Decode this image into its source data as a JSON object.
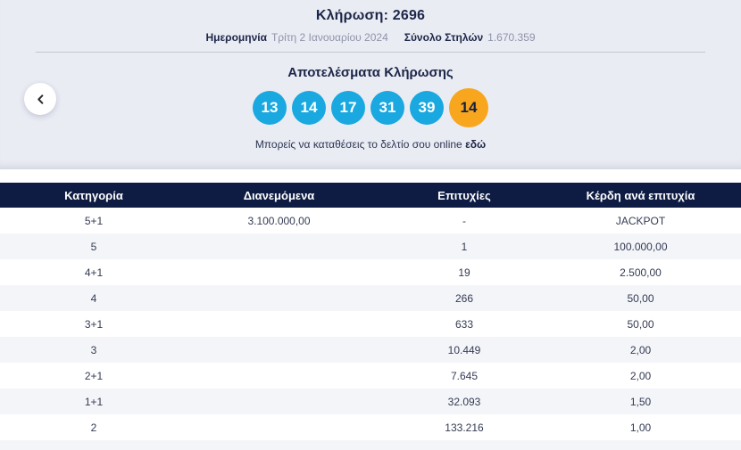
{
  "colors": {
    "band_bg": "#eaecf4",
    "divider": "#c5c6cd",
    "heading_text": "#1c2647",
    "muted_text": "#8f93a8",
    "body_text": "#343b53",
    "ball_blue": "#1aa8e0",
    "ball_bonus_orange": "#f8a61e",
    "ball_bonus_text": "#14213f",
    "table_header_bg": "#0e1c44",
    "table_header_text": "#ffffff",
    "row_alt_bg": "#f4f5f9"
  },
  "header": {
    "title": "Κλήρωση: 2696",
    "date_label": "Ημερομηνία",
    "date_value": "Τρίτη 2 Ιανουαρίου 2024",
    "columns_label": "Σύνολο Στηλών",
    "columns_value": "1.670.359"
  },
  "results": {
    "heading": "Αποτελέσματα Κλήρωσης",
    "numbers": [
      "13",
      "14",
      "17",
      "31",
      "39"
    ],
    "bonus_number": "14",
    "cta_text": "Μπορείς να καταθέσεις το δελτίο σου online",
    "cta_link_label": "εδώ"
  },
  "table": {
    "headers": [
      "Κατηγορία",
      "Διανεμόμενα",
      "Επιτυχίες",
      "Κέρδη ανά επιτυχία"
    ],
    "rows": [
      [
        "5+1",
        "3.100.000,00",
        "-",
        "JACKPOT"
      ],
      [
        "5",
        "",
        "1",
        "100.000,00"
      ],
      [
        "4+1",
        "",
        "19",
        "2.500,00"
      ],
      [
        "4",
        "",
        "266",
        "50,00"
      ],
      [
        "3+1",
        "",
        "633",
        "50,00"
      ],
      [
        "3",
        "",
        "10.449",
        "2,00"
      ],
      [
        "2+1",
        "",
        "7.645",
        "2,00"
      ],
      [
        "1+1",
        "",
        "32.093",
        "1,50"
      ],
      [
        "2",
        "",
        "133.216",
        "1,00"
      ]
    ]
  }
}
